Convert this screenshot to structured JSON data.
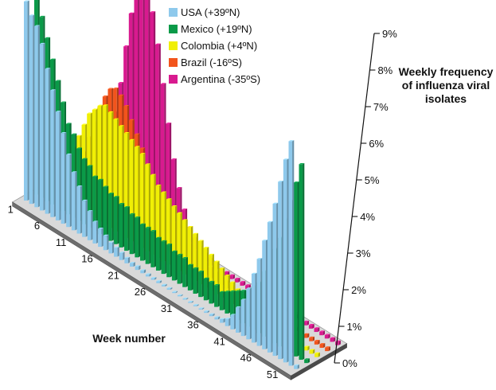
{
  "chart_data": {
    "type": "bar",
    "subtype": "3d-bar",
    "title_lines": [
      "Weekly frequency",
      "of influenza viral",
      "isolates"
    ],
    "xlabel": "Week number",
    "ylabel": "",
    "x_tick_labels": [
      "1",
      "6",
      "11",
      "16",
      "21",
      "26",
      "31",
      "36",
      "41",
      "46",
      "51"
    ],
    "y_tick_labels": [
      "0%",
      "1%",
      "2%",
      "3%",
      "4%",
      "5%",
      "6%",
      "7%",
      "8%",
      "9%"
    ],
    "ylim": [
      0,
      9
    ],
    "legend_position": "top",
    "weeks": [
      1,
      2,
      3,
      4,
      5,
      6,
      7,
      8,
      9,
      10,
      11,
      12,
      13,
      14,
      15,
      16,
      17,
      18,
      19,
      20,
      21,
      22,
      23,
      24,
      25,
      26,
      27,
      28,
      29,
      30,
      31,
      32,
      33,
      34,
      35,
      36,
      37,
      38,
      39,
      40,
      41,
      42,
      43,
      44,
      45,
      46,
      47,
      48,
      49,
      50,
      51,
      52
    ],
    "series": [
      {
        "name": "USA (+39ºN)",
        "color": "#8ec9ec",
        "values": [
          5.5,
          5.2,
          5.0,
          4.6,
          4.0,
          3.5,
          3.0,
          2.5,
          2.0,
          1.6,
          1.3,
          1.0,
          0.8,
          0.6,
          0.5,
          0.4,
          0.3,
          0.25,
          0.2,
          0.15,
          0.1,
          0.1,
          0.08,
          0.06,
          0.05,
          0.05,
          0.04,
          0.04,
          0.03,
          0.03,
          0.03,
          0.03,
          0.03,
          0.03,
          0.04,
          0.05,
          0.06,
          0.1,
          0.2,
          0.4,
          0.7,
          1.0,
          1.4,
          1.9,
          2.4,
          3.0,
          3.6,
          4.2,
          4.9,
          5.6,
          6.2,
          0.1
        ]
      },
      {
        "name": "Mexico (+19ºN)",
        "color": "#0a9a48",
        "values": [
          5.6,
          5.0,
          4.5,
          4.0,
          3.5,
          3.0,
          2.5,
          2.3,
          2.0,
          1.8,
          1.7,
          1.5,
          1.5,
          1.4,
          1.3,
          1.3,
          1.2,
          1.2,
          1.1,
          1.1,
          1.0,
          1.0,
          1.0,
          0.9,
          0.9,
          0.9,
          0.8,
          0.8,
          0.8,
          0.7,
          0.7,
          0.7,
          0.6,
          0.6,
          0.6,
          0.5,
          0.6,
          0.7,
          0.8,
          0.9,
          1.0,
          1.2,
          1.4,
          1.8,
          2.2,
          2.6,
          3.0,
          3.6,
          4.2,
          4.8,
          5.4,
          0.1
        ]
      },
      {
        "name": "Colombia (+4ºN)",
        "color": "#f0ef05",
        "values": [
          0.5,
          0.6,
          0.8,
          1.0,
          1.3,
          1.6,
          2.0,
          2.4,
          2.8,
          3.0,
          3.2,
          3.3,
          3.2,
          3.1,
          3.0,
          2.9,
          2.8,
          2.7,
          2.6,
          2.4,
          2.2,
          2.0,
          1.9,
          1.8,
          1.7,
          1.6,
          1.5,
          1.4,
          1.3,
          1.2,
          1.1,
          1.0,
          0.9,
          0.8,
          0.7,
          0.6,
          0.5,
          0.4,
          0.3,
          0.2,
          0.1,
          0.1,
          0.1,
          0.1,
          0.1,
          0.1,
          0.1,
          0.1,
          0.1,
          0.1,
          0.1,
          0.1
        ]
      },
      {
        "name": "Brazil (-16ºS)",
        "color": "#f2541c",
        "values": [
          0.2,
          0.3,
          0.4,
          0.6,
          0.9,
          1.3,
          1.8,
          2.3,
          2.8,
          3.2,
          3.5,
          3.6,
          3.5,
          3.3,
          3.0,
          2.7,
          2.4,
          2.0,
          1.7,
          1.4,
          1.2,
          1.0,
          0.9,
          0.8,
          0.7,
          0.6,
          0.5,
          0.4,
          0.35,
          0.3,
          0.25,
          0.2,
          0.2,
          0.15,
          0.15,
          0.1,
          0.1,
          0.1,
          0.1,
          0.1,
          0.1,
          0.1,
          0.1,
          0.1,
          0.1,
          0.1,
          0.1,
          0.1,
          0.1,
          0.1,
          0.1,
          0.1
        ]
      },
      {
        "name": "Argentina (-35ºS)",
        "color": "#d81a8f",
        "values": [
          0.1,
          0.1,
          0.15,
          0.2,
          0.3,
          0.5,
          0.8,
          1.2,
          1.8,
          2.6,
          3.5,
          4.6,
          5.6,
          6.4,
          6.8,
          6.6,
          6.0,
          5.2,
          4.2,
          3.2,
          2.3,
          1.6,
          1.1,
          0.7,
          0.5,
          0.35,
          0.25,
          0.2,
          0.15,
          0.1,
          0.1,
          0.1,
          0.1,
          0.1,
          0.1,
          0.1,
          0.1,
          0.1,
          0.1,
          0.1,
          0.1,
          0.1,
          0.1,
          0.1,
          0.1,
          0.1,
          0.1,
          0.1,
          0.1,
          0.1,
          0.1,
          0.1
        ]
      }
    ]
  }
}
